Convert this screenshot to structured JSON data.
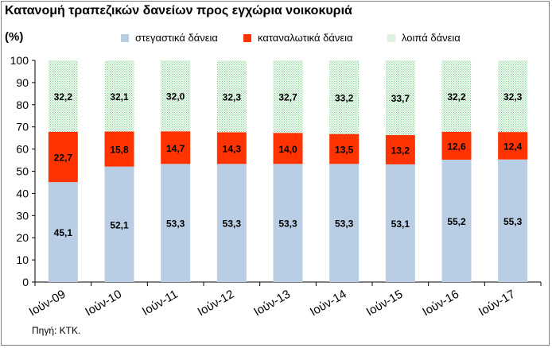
{
  "chart_data": {
    "type": "bar",
    "stacked": true,
    "title": "Κατανομή τραπεζικών δανείων προς εγχώρια νοικοκυριά",
    "ylabel": "(%)",
    "xlabel": "",
    "ylim": [
      0,
      100
    ],
    "yticks": [
      0,
      10,
      20,
      30,
      40,
      50,
      60,
      70,
      80,
      90,
      100
    ],
    "grid": false,
    "legend_position": "top",
    "categories": [
      "Ιούν-09",
      "Ιούν-10",
      "Ιούν-11",
      "Ιούν-12",
      "Ιούν-13",
      "Ιούν-14",
      "Ιούν-15",
      "Ιούν-16",
      "Ιούν-17"
    ],
    "series": [
      {
        "name": "στεγαστικά δάνεια",
        "color": "#b9cde4",
        "values": [
          45.1,
          52.1,
          53.3,
          53.3,
          53.3,
          53.3,
          53.1,
          55.2,
          55.3
        ],
        "labels": [
          "45,1",
          "52,1",
          "53,3",
          "53,3",
          "53,3",
          "53,3",
          "53,1",
          "55,2",
          "55,3"
        ]
      },
      {
        "name": "καταναλωτικά δάνεια",
        "color": "#ff3300",
        "values": [
          22.7,
          15.8,
          14.7,
          14.3,
          14.0,
          13.5,
          13.2,
          12.6,
          12.4
        ],
        "labels": [
          "22,7",
          "15,8",
          "14,7",
          "14,3",
          "14,0",
          "13,5",
          "13,2",
          "12,6",
          "12,4"
        ]
      },
      {
        "name": "λοιπά δάνεια",
        "color": "#c3e6c9",
        "pattern": "dotted",
        "values": [
          32.2,
          32.1,
          32.0,
          32.3,
          32.7,
          33.2,
          33.7,
          32.2,
          32.3
        ],
        "labels": [
          "32,2",
          "32,1",
          "32,0",
          "32,3",
          "32,7",
          "33,2",
          "33,7",
          "32,2",
          "32,3"
        ]
      }
    ],
    "source": "Πηγή: ΚΤΚ."
  }
}
